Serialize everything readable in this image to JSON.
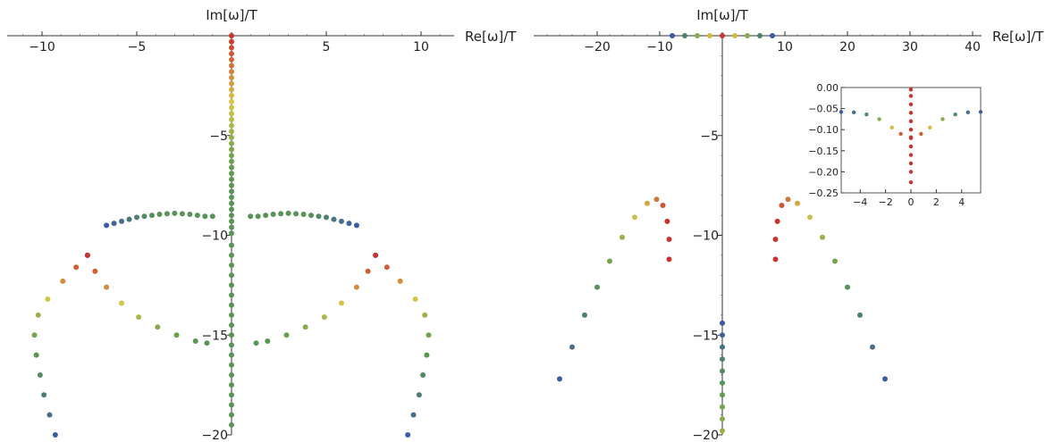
{
  "chart_data": [
    {
      "type": "scatter",
      "xlabel": "Re[ω]/T",
      "ylabel": "Im[ω]/T",
      "xlim": [
        -12,
        12
      ],
      "ylim": [
        -20,
        0.5
      ],
      "xticks": [
        -10,
        -5,
        5,
        10
      ],
      "yticks": [
        -5,
        -10,
        -15,
        -20
      ],
      "axes_style": "cross at origin",
      "colormap": [
        "#3b5ba5",
        "#5b9a4e",
        "#d8c84a",
        "#c8332f"
      ],
      "series": [
        {
          "points": [
            [
              0,
              0
            ],
            [
              0,
              -0.3
            ],
            [
              0,
              -0.6
            ],
            [
              0,
              -0.9
            ],
            [
              0,
              -1.2
            ],
            [
              0,
              -1.5
            ],
            [
              0,
              -1.8
            ],
            [
              0,
              -2.1
            ],
            [
              0,
              -2.4
            ],
            [
              0,
              -2.7
            ],
            [
              0,
              -3
            ],
            [
              0,
              -3.3
            ],
            [
              0,
              -3.6
            ],
            [
              0,
              -3.9
            ],
            [
              0,
              -4.2
            ],
            [
              0,
              -4.5
            ],
            [
              0,
              -4.8
            ],
            [
              0,
              -5.1
            ],
            [
              0,
              -5.4
            ],
            [
              0,
              -5.7
            ],
            [
              0,
              -6
            ],
            [
              0,
              -6.3
            ],
            [
              0,
              -6.6
            ],
            [
              0,
              -6.9
            ],
            [
              0,
              -7.2
            ],
            [
              0,
              -7.5
            ],
            [
              0,
              -7.8
            ],
            [
              0,
              -8.1
            ],
            [
              0,
              -8.4
            ],
            [
              0,
              -8.7
            ],
            [
              0,
              -9
            ],
            [
              0,
              -9.3
            ],
            [
              0,
              -9.6
            ],
            [
              0,
              -9.9
            ]
          ],
          "c": [
            1,
            0.97,
            0.94,
            0.91,
            0.88,
            0.85,
            0.82,
            0.79,
            0.76,
            0.73,
            0.7,
            0.67,
            0.64,
            0.61,
            0.58,
            0.55,
            0.52,
            0.49,
            0.46,
            0.43,
            0.4,
            0.38,
            0.36,
            0.34,
            0.32,
            0.3,
            0.3,
            0.3,
            0.3,
            0.3,
            0.3,
            0.3,
            0.3,
            0.3
          ]
        },
        {
          "points": [
            [
              0,
              -10.5
            ],
            [
              0,
              -11
            ],
            [
              0,
              -11.5
            ],
            [
              0,
              -12
            ],
            [
              0,
              -12.5
            ],
            [
              0,
              -13
            ],
            [
              0,
              -13.5
            ],
            [
              0,
              -14
            ],
            [
              0,
              -14.5
            ],
            [
              0,
              -15
            ],
            [
              0,
              -15.5
            ],
            [
              0,
              -16
            ],
            [
              0,
              -16.5
            ],
            [
              0,
              -17
            ],
            [
              0,
              -17.5
            ],
            [
              0,
              -18
            ],
            [
              0,
              -18.5
            ],
            [
              0,
              -19
            ],
            [
              0,
              -19.5
            ]
          ],
          "c": [
            0.3,
            0.3,
            0.3,
            0.3,
            0.3,
            0.3,
            0.3,
            0.3,
            0.3,
            0.3,
            0.3,
            0.3,
            0.3,
            0.3,
            0.3,
            0.3,
            0.3,
            0.3,
            0.3
          ]
        },
        {
          "points": [
            [
              -6.6,
              -9.5
            ],
            [
              -6.2,
              -9.4
            ],
            [
              -5.8,
              -9.3
            ],
            [
              -5.4,
              -9.2
            ],
            [
              -5,
              -9.1
            ],
            [
              -4.6,
              -9.05
            ],
            [
              -4.2,
              -9
            ],
            [
              -3.8,
              -8.95
            ],
            [
              -3.4,
              -8.92
            ],
            [
              -3,
              -8.9
            ],
            [
              -2.6,
              -8.92
            ],
            [
              -2.2,
              -8.95
            ],
            [
              -1.8,
              -9
            ],
            [
              -1.4,
              -9.05
            ],
            [
              -1,
              -9.05
            ]
          ],
          "c": [
            0,
            0.05,
            0.1,
            0.15,
            0.2,
            0.25,
            0.28,
            0.3,
            0.3,
            0.3,
            0.3,
            0.3,
            0.3,
            0.3,
            0.3
          ]
        },
        {
          "points": [
            [
              6.6,
              -9.5
            ],
            [
              6.2,
              -9.4
            ],
            [
              5.8,
              -9.3
            ],
            [
              5.4,
              -9.2
            ],
            [
              5,
              -9.1
            ],
            [
              4.6,
              -9.05
            ],
            [
              4.2,
              -9
            ],
            [
              3.8,
              -8.95
            ],
            [
              3.4,
              -8.92
            ],
            [
              3,
              -8.9
            ],
            [
              2.6,
              -8.92
            ],
            [
              2.2,
              -8.95
            ],
            [
              1.8,
              -9
            ],
            [
              1.4,
              -9.05
            ],
            [
              1,
              -9.05
            ]
          ],
          "c": [
            0,
            0.05,
            0.1,
            0.15,
            0.2,
            0.25,
            0.28,
            0.3,
            0.3,
            0.3,
            0.3,
            0.3,
            0.3,
            0.3,
            0.3
          ]
        },
        {
          "points": [
            [
              -7.6,
              -11
            ],
            [
              -8.2,
              -11.6
            ],
            [
              -8.9,
              -12.3
            ],
            [
              -9.7,
              -13.2
            ],
            [
              -10.2,
              -14
            ],
            [
              -10.4,
              -15
            ],
            [
              -10.3,
              -16
            ],
            [
              -10.1,
              -17
            ],
            [
              -9.9,
              -18
            ],
            [
              -9.6,
              -19
            ],
            [
              -9.3,
              -20
            ]
          ],
          "c": [
            1,
            0.9,
            0.8,
            0.65,
            0.5,
            0.4,
            0.32,
            0.25,
            0.18,
            0.1,
            0
          ]
        },
        {
          "points": [
            [
              -7.6,
              -11
            ],
            [
              -7.2,
              -11.8
            ],
            [
              -6.6,
              -12.6
            ],
            [
              -5.8,
              -13.4
            ],
            [
              -4.9,
              -14.1
            ],
            [
              -3.9,
              -14.6
            ],
            [
              -2.9,
              -15
            ],
            [
              -1.9,
              -15.3
            ],
            [
              -1.3,
              -15.4
            ]
          ],
          "c": [
            1,
            0.9,
            0.8,
            0.68,
            0.55,
            0.45,
            0.38,
            0.32,
            0.3
          ]
        },
        {
          "points": [
            [
              7.6,
              -11
            ],
            [
              8.2,
              -11.6
            ],
            [
              8.9,
              -12.3
            ],
            [
              9.7,
              -13.2
            ],
            [
              10.2,
              -14
            ],
            [
              10.4,
              -15
            ],
            [
              10.3,
              -16
            ],
            [
              10.1,
              -17
            ],
            [
              9.9,
              -18
            ],
            [
              9.6,
              -19
            ],
            [
              9.3,
              -20
            ]
          ],
          "c": [
            1,
            0.9,
            0.8,
            0.65,
            0.5,
            0.4,
            0.32,
            0.25,
            0.18,
            0.1,
            0
          ]
        },
        {
          "points": [
            [
              7.6,
              -11
            ],
            [
              7.2,
              -11.8
            ],
            [
              6.6,
              -12.6
            ],
            [
              5.8,
              -13.4
            ],
            [
              4.9,
              -14.1
            ],
            [
              3.9,
              -14.6
            ],
            [
              2.9,
              -15
            ],
            [
              1.9,
              -15.3
            ],
            [
              1.3,
              -15.4
            ]
          ],
          "c": [
            1,
            0.9,
            0.8,
            0.68,
            0.55,
            0.45,
            0.38,
            0.32,
            0.3
          ]
        }
      ]
    },
    {
      "type": "scatter",
      "xlabel": "Re[ω]/T",
      "ylabel": "Im[ω]/T",
      "xlim": [
        -28,
        40
      ],
      "ylim": [
        -20,
        0.5
      ],
      "xticks": [
        -20,
        -10,
        10,
        20,
        30,
        40
      ],
      "yticks": [
        -5,
        -10,
        -15,
        -20
      ],
      "axes_style": "cross at origin",
      "series": [
        {
          "points": [
            [
              -8,
              0
            ],
            [
              -6,
              0
            ],
            [
              -4,
              0
            ],
            [
              -2,
              0
            ],
            [
              0,
              0
            ],
            [
              2,
              0
            ],
            [
              4,
              0
            ],
            [
              6,
              0
            ],
            [
              8,
              0
            ]
          ],
          "c": [
            0,
            0.2,
            0.45,
            0.7,
            1,
            0.7,
            0.45,
            0.2,
            0
          ]
        },
        {
          "points": [
            [
              -26,
              -17.2
            ],
            [
              -24,
              -15.6
            ],
            [
              -22,
              -14
            ],
            [
              -20,
              -12.6
            ],
            [
              -18,
              -11.3
            ],
            [
              -16,
              -10.1
            ],
            [
              -14,
              -9.1
            ],
            [
              -12,
              -8.4
            ],
            [
              -10.5,
              -8.2
            ],
            [
              -9.5,
              -8.5
            ],
            [
              -8.8,
              -9.3
            ],
            [
              -8.5,
              -10.2
            ],
            [
              -8.5,
              -11.2
            ]
          ],
          "c": [
            0,
            0.1,
            0.2,
            0.3,
            0.4,
            0.5,
            0.62,
            0.75,
            0.85,
            0.92,
            1,
            1,
            1
          ]
        },
        {
          "points": [
            [
              26,
              -17.2
            ],
            [
              24,
              -15.6
            ],
            [
              22,
              -14
            ],
            [
              20,
              -12.6
            ],
            [
              18,
              -11.3
            ],
            [
              16,
              -10.1
            ],
            [
              14,
              -9.1
            ],
            [
              12,
              -8.4
            ],
            [
              10.5,
              -8.2
            ],
            [
              9.5,
              -8.5
            ],
            [
              8.8,
              -9.3
            ],
            [
              8.5,
              -10.2
            ],
            [
              8.5,
              -11.2
            ]
          ],
          "c": [
            0,
            0.1,
            0.2,
            0.3,
            0.4,
            0.5,
            0.62,
            0.75,
            0.85,
            0.92,
            1,
            1,
            1
          ]
        },
        {
          "points": [
            [
              0,
              -14.4
            ],
            [
              0,
              -15
            ],
            [
              0,
              -15.6
            ],
            [
              0,
              -16.2
            ],
            [
              0,
              -16.8
            ],
            [
              0,
              -17.4
            ],
            [
              0,
              -18
            ],
            [
              0,
              -18.6
            ],
            [
              0,
              -19.2
            ],
            [
              0,
              -19.8
            ]
          ],
          "c": [
            0,
            0.05,
            0.12,
            0.2,
            0.25,
            0.3,
            0.35,
            0.4,
            0.45,
            0.5
          ]
        }
      ],
      "inset": {
        "type": "scatter",
        "xlim": [
          -5.5,
          5.5
        ],
        "ylim": [
          -0.25,
          0
        ],
        "xticks": [
          -4,
          -2,
          0,
          2,
          4
        ],
        "yticks": [
          0.0,
          -0.05,
          -0.1,
          -0.15,
          -0.2,
          -0.25
        ],
        "ytick_labels": [
          "0.00",
          "-0.05",
          "-0.10",
          "-0.15",
          "-0.20",
          "-0.25"
        ],
        "series": [
          {
            "points": [
              [
                -5.5,
                -0.058
              ],
              [
                -4.5,
                -0.059
              ],
              [
                -3.5,
                -0.064
              ],
              [
                -2.5,
                -0.075
              ],
              [
                -1.5,
                -0.095
              ],
              [
                -0.8,
                -0.11
              ],
              [
                0,
                -0.118
              ],
              [
                0.8,
                -0.11
              ],
              [
                1.5,
                -0.095
              ],
              [
                2.5,
                -0.075
              ],
              [
                3.5,
                -0.064
              ],
              [
                4.5,
                -0.059
              ],
              [
                5.5,
                -0.058
              ]
            ],
            "c": [
              0,
              0.1,
              0.25,
              0.45,
              0.7,
              0.9,
              1,
              0.9,
              0.7,
              0.45,
              0.25,
              0.1,
              0
            ]
          },
          {
            "points": [
              [
                0,
                -0.005
              ],
              [
                0,
                -0.02
              ],
              [
                0,
                -0.04
              ],
              [
                0,
                -0.06
              ],
              [
                0,
                -0.08
              ],
              [
                0,
                -0.1
              ],
              [
                0,
                -0.12
              ],
              [
                0,
                -0.14
              ],
              [
                0,
                -0.16
              ],
              [
                0,
                -0.18
              ],
              [
                0,
                -0.2
              ],
              [
                0,
                -0.225
              ]
            ],
            "c": [
              1,
              1,
              1,
              1,
              1,
              1,
              1,
              1,
              1,
              1,
              1,
              1
            ]
          }
        ]
      }
    }
  ]
}
